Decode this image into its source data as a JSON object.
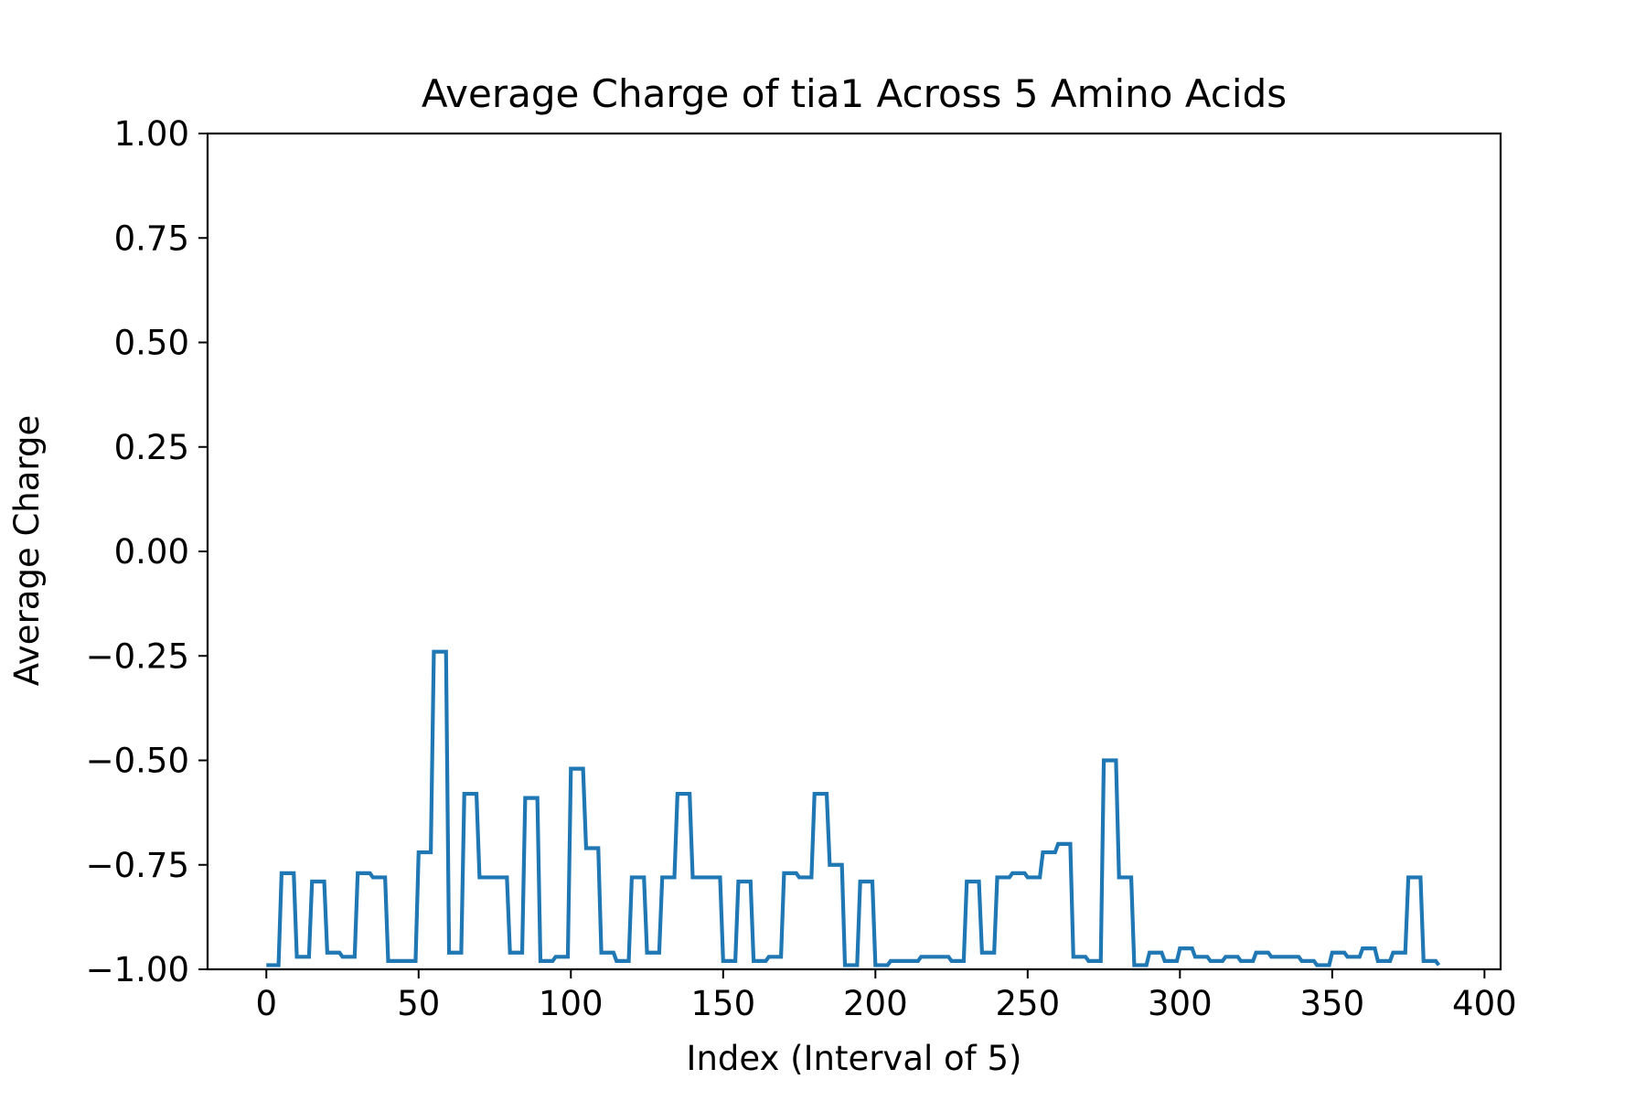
{
  "chart_data": {
    "type": "line",
    "title": "Average Charge of tia1 Across 5 Amino Acids",
    "xlabel": "Index (Interval of 5)",
    "ylabel": "Average Charge",
    "xlim": [
      -19.3,
      405.3
    ],
    "ylim": [
      -1.0,
      1.0
    ],
    "xticks": [
      0,
      50,
      100,
      150,
      200,
      250,
      300,
      350,
      400
    ],
    "xtick_labels": [
      "0",
      "50",
      "100",
      "150",
      "200",
      "250",
      "300",
      "350",
      "400"
    ],
    "yticks": [
      1.0,
      0.75,
      0.5,
      0.25,
      0.0,
      -0.25,
      -0.5,
      -0.75,
      -1.0
    ],
    "ytick_labels": [
      "1.00",
      "0.75",
      "0.50",
      "0.25",
      "0.00",
      "−0.25",
      "−0.50",
      "−0.75",
      "−1.00"
    ],
    "grid": false,
    "legend": false,
    "series_color": "#1f77b4",
    "series": [
      {
        "x": [
          0,
          4,
          5,
          9,
          10,
          14,
          15,
          19,
          20,
          24,
          25,
          29,
          30,
          34,
          35,
          39,
          40,
          49,
          50,
          54,
          55,
          59,
          60,
          64,
          65,
          69,
          70,
          79,
          80,
          84,
          85,
          89,
          90,
          94,
          95,
          99,
          100,
          104,
          105,
          109,
          110,
          114,
          115,
          119,
          120,
          124,
          125,
          129,
          130,
          134,
          135,
          139,
          140,
          149,
          150,
          154,
          155,
          159,
          160,
          164,
          165,
          169,
          170,
          174,
          175,
          179,
          180,
          184,
          185,
          189,
          190,
          194,
          195,
          199,
          200,
          204,
          205,
          209,
          210,
          214,
          215,
          219,
          220,
          224,
          225,
          229,
          230,
          234,
          235,
          239,
          240,
          244,
          245,
          249,
          250,
          254,
          255,
          259,
          260,
          264,
          265,
          269,
          270,
          274,
          275,
          279,
          280,
          284,
          285,
          289,
          290,
          294,
          295,
          299,
          300,
          304,
          305,
          309,
          310,
          314,
          315,
          319,
          320,
          324,
          325,
          329,
          330,
          339,
          340,
          344,
          345,
          349,
          350,
          354,
          355,
          359,
          360,
          364,
          365,
          369,
          370,
          374,
          375,
          379,
          380,
          384,
          385
        ],
        "y": [
          -0.99,
          -0.99,
          -0.77,
          -0.77,
          -0.97,
          -0.97,
          -0.79,
          -0.79,
          -0.96,
          -0.96,
          -0.97,
          -0.97,
          -0.77,
          -0.77,
          -0.78,
          -0.78,
          -0.98,
          -0.98,
          -0.72,
          -0.72,
          -0.24,
          -0.24,
          -0.96,
          -0.96,
          -0.58,
          -0.58,
          -0.78,
          -0.78,
          -0.96,
          -0.96,
          -0.59,
          -0.59,
          -0.98,
          -0.98,
          -0.97,
          -0.97,
          -0.52,
          -0.52,
          -0.71,
          -0.71,
          -0.96,
          -0.96,
          -0.98,
          -0.98,
          -0.78,
          -0.78,
          -0.96,
          -0.96,
          -0.78,
          -0.78,
          -0.58,
          -0.58,
          -0.78,
          -0.78,
          -0.98,
          -0.98,
          -0.79,
          -0.79,
          -0.98,
          -0.98,
          -0.97,
          -0.97,
          -0.77,
          -0.77,
          -0.78,
          -0.78,
          -0.58,
          -0.58,
          -0.75,
          -0.75,
          -0.99,
          -0.99,
          -0.79,
          -0.79,
          -0.99,
          -0.99,
          -0.98,
          -0.98,
          -0.98,
          -0.98,
          -0.97,
          -0.97,
          -0.97,
          -0.97,
          -0.98,
          -0.98,
          -0.79,
          -0.79,
          -0.96,
          -0.96,
          -0.78,
          -0.78,
          -0.77,
          -0.77,
          -0.78,
          -0.78,
          -0.72,
          -0.72,
          -0.7,
          -0.7,
          -0.97,
          -0.97,
          -0.98,
          -0.98,
          -0.5,
          -0.5,
          -0.78,
          -0.78,
          -0.99,
          -0.99,
          -0.96,
          -0.96,
          -0.98,
          -0.98,
          -0.95,
          -0.95,
          -0.97,
          -0.97,
          -0.98,
          -0.98,
          -0.97,
          -0.97,
          -0.98,
          -0.98,
          -0.96,
          -0.96,
          -0.97,
          -0.97,
          -0.98,
          -0.98,
          -0.99,
          -0.99,
          -0.96,
          -0.96,
          -0.97,
          -0.97,
          -0.95,
          -0.95,
          -0.98,
          -0.98,
          -0.96,
          -0.96,
          -0.78,
          -0.78,
          -0.98,
          -0.98,
          -0.99
        ]
      }
    ]
  }
}
